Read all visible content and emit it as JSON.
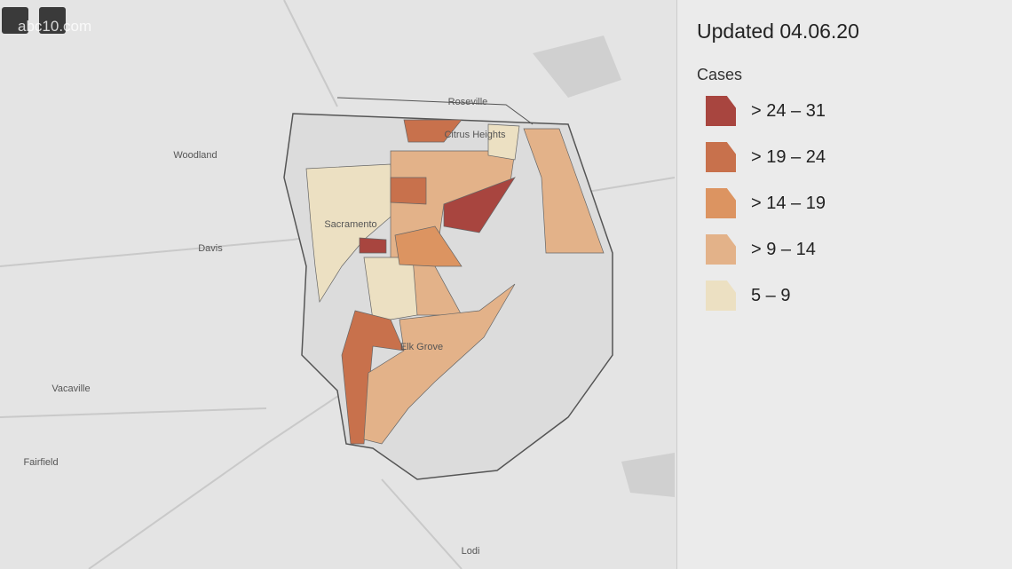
{
  "header": {
    "brand": "abc10.com"
  },
  "map": {
    "places": [
      {
        "label": "Roseville"
      },
      {
        "label": "Citrus Heights"
      },
      {
        "label": "Woodland"
      },
      {
        "label": "Sacramento"
      },
      {
        "label": "Davis"
      },
      {
        "label": "Elk Grove"
      },
      {
        "label": "Vacaville"
      },
      {
        "label": "Fairfield"
      },
      {
        "label": "Lodi"
      }
    ]
  },
  "legend": {
    "updated": "Updated 04.06.20",
    "title": "Cases",
    "items": [
      {
        "label": "> 24 – 31",
        "color": "#a8453f"
      },
      {
        "label": "> 19 – 24",
        "color": "#c8714c"
      },
      {
        "label": "> 14 – 19",
        "color": "#dc9461"
      },
      {
        "label": "> 9 – 14",
        "color": "#e3b289"
      },
      {
        "label": "5 – 9",
        "color": "#ece0c2"
      }
    ]
  }
}
